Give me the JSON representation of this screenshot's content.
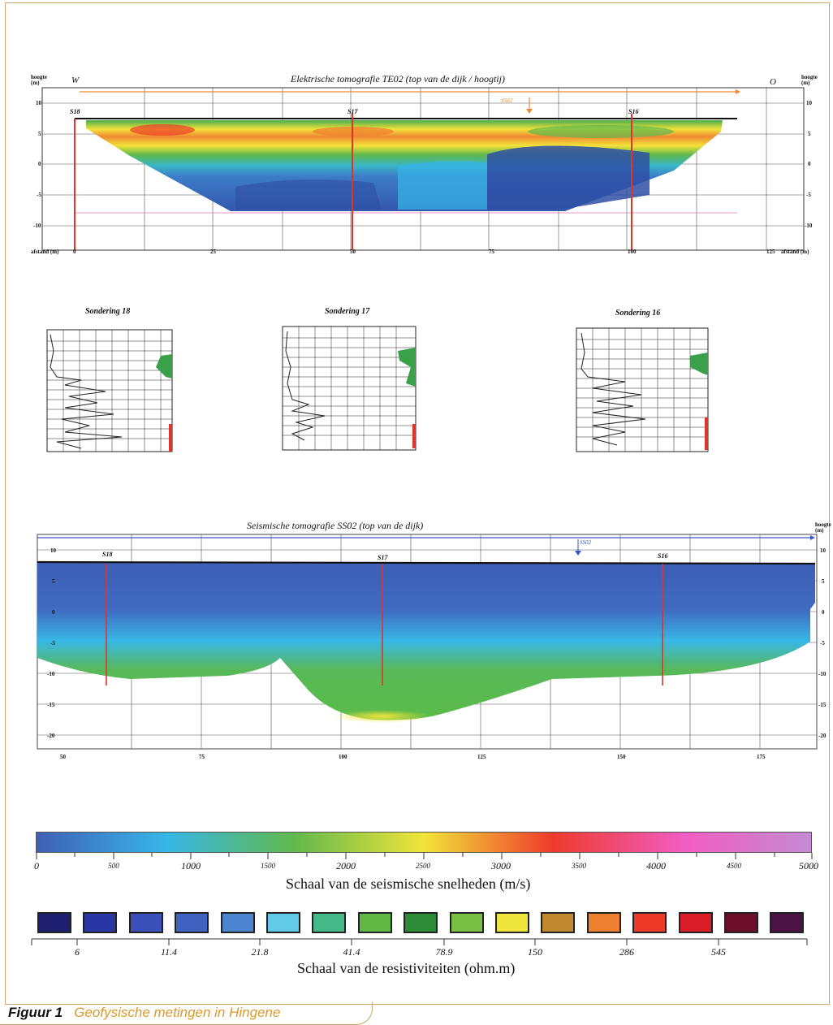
{
  "top_panel": {
    "title": "Elektrische tomografie TE02 (top van de dijk / hoogtij)",
    "left_dir": "W",
    "right_dir": "O",
    "left_axis_label": "hoogte (m)",
    "right_axis_label": "hoogte (m)",
    "bottom_left_label": "afstand (m)",
    "bottom_right_label": "afstand (m)",
    "y_ticks": [
      "10",
      "5",
      "0",
      "-5",
      "-10"
    ],
    "x_ticks": [
      "0",
      "25",
      "50",
      "75",
      "100",
      "125"
    ],
    "soundings": [
      "S18",
      "S17",
      "S16"
    ],
    "marker": "SS02"
  },
  "middle_panel": {
    "soundings": [
      {
        "title": "Sondering 18"
      },
      {
        "title": "Sondering 17"
      },
      {
        "title": "Sondering 16"
      }
    ]
  },
  "bottom_panel": {
    "title": "Seismische tomografie SS02 (top van de dijk)",
    "right_axis_label": "hoogte (m)",
    "y_ticks": [
      "10",
      "5",
      "0",
      "-5",
      "-10",
      "-15",
      "-20"
    ],
    "x_ticks": [
      "50",
      "75",
      "100",
      "125",
      "150",
      "175"
    ],
    "soundings": [
      "S18",
      "S17",
      "S16"
    ],
    "marker": "SS02"
  },
  "seismic_scale": {
    "title": "Schaal van de seismische snelheden (m/s)",
    "major_ticks": [
      "0",
      "1000",
      "2000",
      "3000",
      "4000",
      "5000"
    ],
    "minor_ticks": [
      "500",
      "1500",
      "2500",
      "3500",
      "4500"
    ],
    "colors": [
      "#3e5fb5",
      "#37b6e8",
      "#61b94c",
      "#f1e43a",
      "#ef3a2b",
      "#f25cc0",
      "#c48ad3"
    ]
  },
  "resistivity_scale": {
    "title": "Schaal van de resistiviteiten (ohm.m)",
    "ticks": [
      "6",
      "11.4",
      "21.8",
      "41.4",
      "78.9",
      "150",
      "286",
      "545"
    ],
    "swatches": [
      "#1e1f6e",
      "#2a36a4",
      "#3a4fb8",
      "#3f62c0",
      "#4d84cf",
      "#62c9e6",
      "#45b88a",
      "#63b845",
      "#2e8a37",
      "#79be45",
      "#efe63b",
      "#c08830",
      "#ef8030",
      "#ee3a28",
      "#d91e2a",
      "#6d0e2a",
      "#4b1345"
    ]
  },
  "caption": {
    "label": "Figuur 1",
    "text": "Geofysische metingen in Hingene"
  }
}
